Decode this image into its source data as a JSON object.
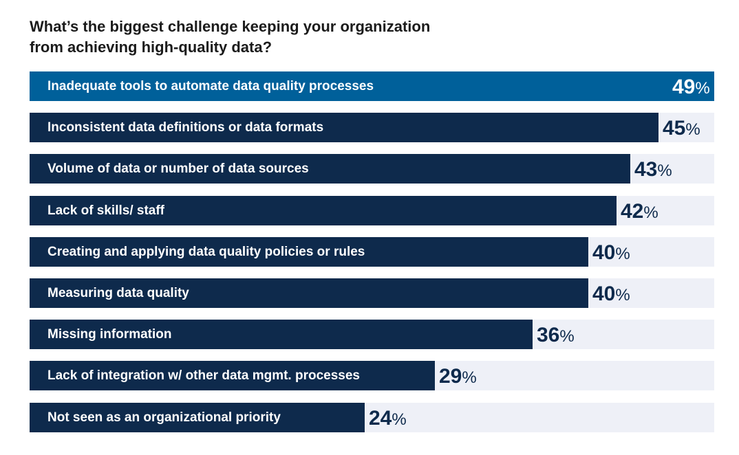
{
  "chart_data": {
    "type": "bar",
    "orientation": "horizontal",
    "title": "What’s the biggest challenge keeping your organization from achieving high-quality data?",
    "categories": [
      "Inadequate tools to automate data quality processes",
      "Inconsistent data definitions or data formats",
      "Volume of data or number of data sources",
      "Lack of skills/ staff",
      "Creating and applying data quality policies or rules",
      "Measuring data quality",
      "Missing information",
      "Lack of integration w/ other data mgmt. processes",
      "Not seen as an organizational priority"
    ],
    "values": [
      49,
      45,
      43,
      42,
      40,
      40,
      36,
      29,
      24
    ],
    "value_suffix": "%",
    "xlim": [
      0,
      49
    ],
    "grid": false,
    "legend": "none"
  },
  "colors": {
    "title": "#1b1b1b",
    "highlight_bar": "#00609a",
    "bar": "#0e2a4c",
    "track": "#eef0f7",
    "label": "#ffffff",
    "value_on_highlight": "#ffffff",
    "value": "#0e2a4c"
  }
}
